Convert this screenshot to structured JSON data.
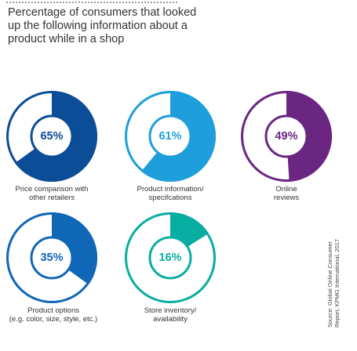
{
  "title_lines": [
    "Percentage of consumers that looked",
    "up the following information about a",
    "product while in a shop"
  ],
  "chart_data": {
    "type": "pie",
    "title": "Percentage of consumers that looked up the following information about a product while in a shop",
    "items": [
      {
        "label_lines": [
          "Price comparison with",
          "other retailers"
        ],
        "percent_label": "65%",
        "value": 65,
        "color": "#0b4d97"
      },
      {
        "label_lines": [
          "Product information/",
          "specifcations"
        ],
        "percent_label": "61%",
        "value": 61,
        "color": "#1e9fdb"
      },
      {
        "label_lines": [
          "Online",
          "reviews"
        ],
        "percent_label": "49%",
        "value": 49,
        "color": "#6b2682"
      },
      {
        "label_lines": [
          "Product options",
          "(e.g. color, size, style, etc.)"
        ],
        "percent_label": "35%",
        "value": 35,
        "color": "#1066b7"
      },
      {
        "label_lines": [
          "Store inventory/",
          "availability"
        ],
        "percent_label": "16%",
        "value": 16,
        "color": "#08ada1"
      }
    ]
  },
  "source_lines": [
    "Source: Global Online Consumer",
    "Report, KPMG International, 2017"
  ]
}
